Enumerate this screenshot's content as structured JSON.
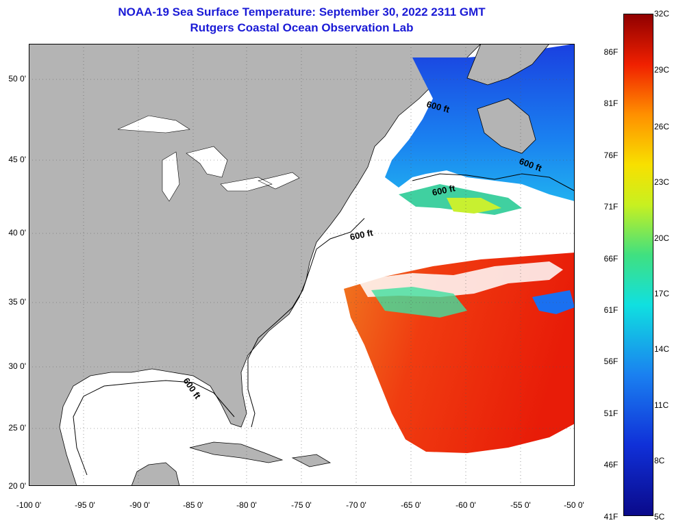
{
  "title": {
    "line1": "NOAA-19 Sea Surface Temperature:  September 30, 2022 2311 GMT",
    "line2": "Rutgers Coastal Ocean Observation Lab"
  },
  "map": {
    "latitude_labels": [
      "50 0'",
      "45 0'",
      "40 0'",
      "35 0'",
      "30 0'",
      "25 0'",
      "20 0'"
    ],
    "longitude_labels": [
      "-100 0'",
      "-95 0'",
      "-90 0'",
      "-85 0'",
      "-80 0'",
      "-75 0'",
      "-70 0'",
      "-65 0'",
      "-60 0'",
      "-55 0'",
      "-50 0'"
    ],
    "contour_labels": [
      "600 ft",
      "600 ft",
      "600 ft",
      "600 ft",
      "600 ft"
    ],
    "land_color": "#b4b4b4",
    "cloud_color": "#ffffff"
  },
  "colorbar": {
    "fahrenheit_labels": [
      "86F",
      "81F",
      "76F",
      "71F",
      "66F",
      "61F",
      "56F",
      "51F",
      "46F",
      "41F"
    ],
    "celsius_labels": [
      "32C",
      "29C",
      "26C",
      "23C",
      "20C",
      "17C",
      "14C",
      "11C",
      "8C",
      "5C"
    ],
    "min_f": 41,
    "max_f": 91,
    "min_c": 5,
    "max_c": 32
  }
}
